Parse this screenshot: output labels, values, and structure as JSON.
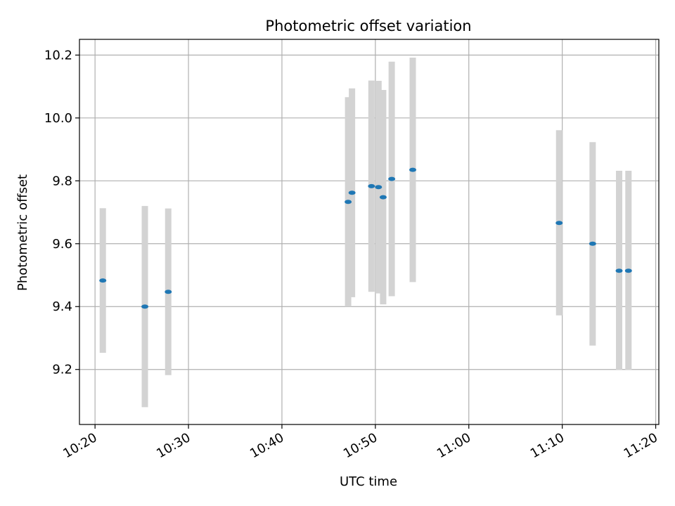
{
  "chart_data": {
    "type": "scatter",
    "title": "Photometric offset variation",
    "xlabel": "UTC time",
    "ylabel": "Photometric offset",
    "xlim": [
      "10:18:20",
      "11:20:20"
    ],
    "ylim": [
      9.025,
      10.25
    ],
    "grid": true,
    "x_ticks": [
      "10:20",
      "10:30",
      "10:40",
      "10:50",
      "11:00",
      "11:10",
      "11:20"
    ],
    "y_ticks": [
      "9.2",
      "9.4",
      "9.6",
      "9.8",
      "10.0",
      "10.2"
    ],
    "colors": {
      "points": "#1f77b4",
      "error_bars": "#d3d3d3",
      "grid": "#b0b0b0"
    },
    "series": [
      {
        "points": [
          {
            "x": "10:20:50",
            "y": 9.483,
            "ylow": 9.253,
            "yhigh": 9.713
          },
          {
            "x": "10:25:20",
            "y": 9.4,
            "ylow": 9.08,
            "yhigh": 9.72
          },
          {
            "x": "10:27:50",
            "y": 9.447,
            "ylow": 9.182,
            "yhigh": 9.712
          },
          {
            "x": "10:47:05",
            "y": 9.733,
            "ylow": 9.4,
            "yhigh": 10.066
          },
          {
            "x": "10:47:30",
            "y": 9.762,
            "ylow": 9.43,
            "yhigh": 10.094
          },
          {
            "x": "10:49:35",
            "y": 9.783,
            "ylow": 9.447,
            "yhigh": 10.119
          },
          {
            "x": "10:50:20",
            "y": 9.78,
            "ylow": 9.442,
            "yhigh": 10.118
          },
          {
            "x": "10:50:50",
            "y": 9.748,
            "ylow": 9.407,
            "yhigh": 10.089
          },
          {
            "x": "10:51:45",
            "y": 9.806,
            "ylow": 9.433,
            "yhigh": 10.179
          },
          {
            "x": "10:54:00",
            "y": 9.835,
            "ylow": 9.478,
            "yhigh": 10.192
          },
          {
            "x": "11:09:40",
            "y": 9.666,
            "ylow": 9.372,
            "yhigh": 9.961
          },
          {
            "x": "11:13:15",
            "y": 9.6,
            "ylow": 9.276,
            "yhigh": 9.923
          },
          {
            "x": "11:16:05",
            "y": 9.514,
            "ylow": 9.198,
            "yhigh": 9.832
          },
          {
            "x": "11:17:05",
            "y": 9.514,
            "ylow": 9.198,
            "yhigh": 9.832
          }
        ]
      }
    ]
  }
}
